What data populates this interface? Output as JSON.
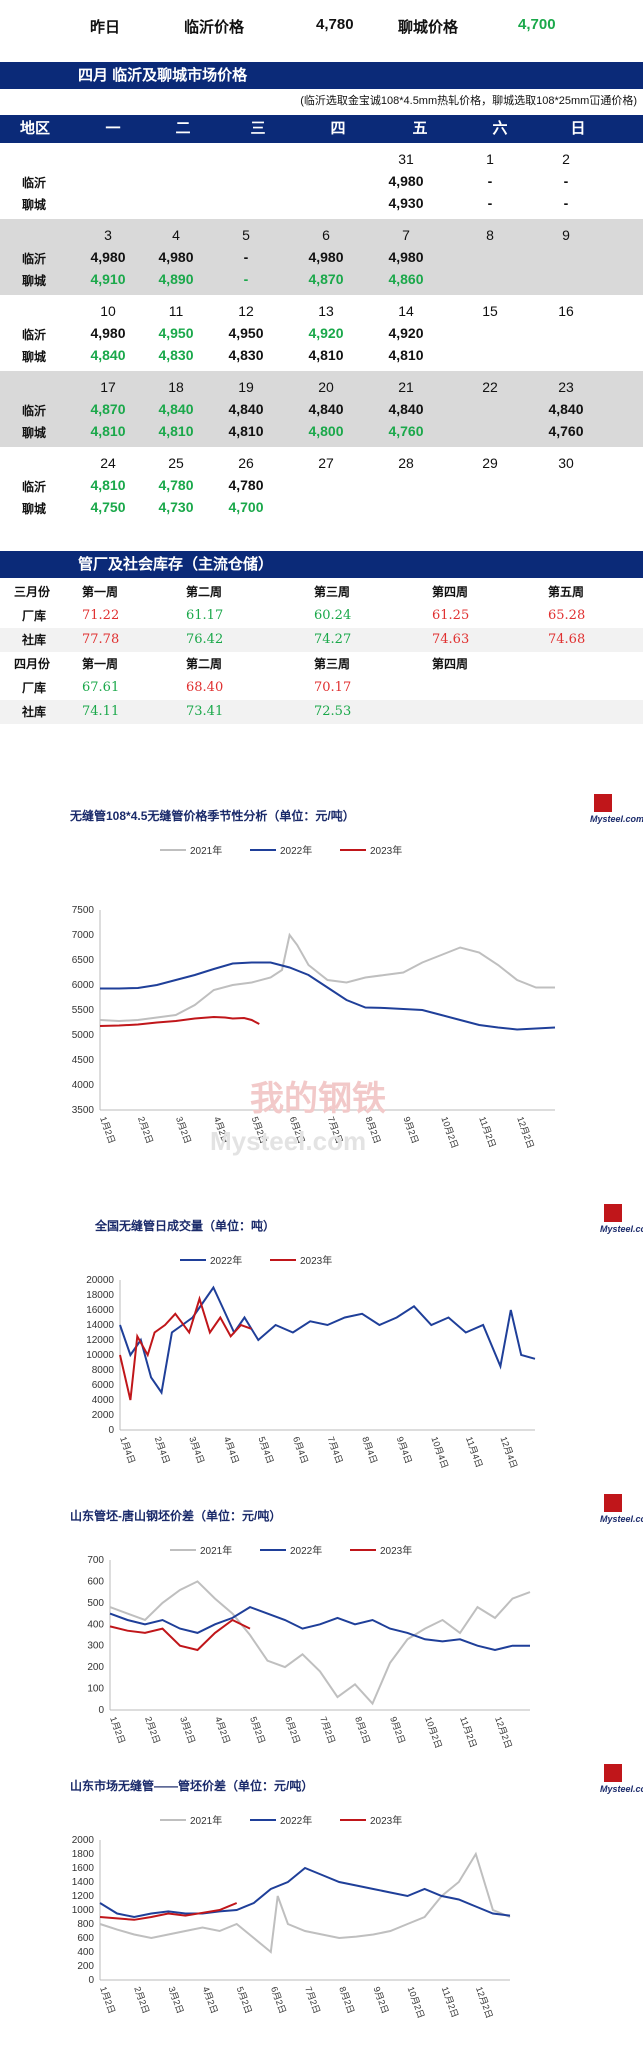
{
  "top": {
    "yesterday": "昨日",
    "linyi_label": "临沂价格",
    "linyi_value": "4,780",
    "liaocheng_label": "聊城价格",
    "liaocheng_value": "4,700"
  },
  "market": {
    "title": "四月  临沂及聊城市场价格",
    "note": "(临沂选取金宝诚108*4.5mm热轧价格，聊城选取108*25mm冚通价格)",
    "headers": [
      "地区",
      "一",
      "二",
      "三",
      "四",
      "五",
      "六",
      "日"
    ],
    "row_labels": {
      "linyi": "临沂",
      "liaocheng": "聊城"
    },
    "weeks": [
      {
        "dates": [
          "",
          "",
          "",
          "",
          "31",
          "1",
          "2"
        ],
        "linyi": [
          "",
          "",
          "",
          "",
          "4,980",
          "-",
          "-"
        ],
        "liaocheng": [
          "",
          "",
          "",
          "",
          "4,930",
          "-",
          "-"
        ]
      },
      {
        "dates": [
          "3",
          "4",
          "5",
          "6",
          "7",
          "8",
          "9"
        ],
        "linyi": [
          "4,980",
          "4,980",
          "-",
          "4,980",
          "4,980",
          "",
          ""
        ],
        "liaocheng": [
          "4,910",
          "4,890",
          "-",
          "4,870",
          "4,860",
          "",
          ""
        ]
      },
      {
        "dates": [
          "10",
          "11",
          "12",
          "13",
          "14",
          "15",
          "16"
        ],
        "linyi": [
          "4,980",
          "4,950",
          "4,950",
          "4,920",
          "4,920",
          "",
          ""
        ],
        "liaocheng": [
          "4,840",
          "4,830",
          "4,830",
          "4,810",
          "4,810",
          "",
          ""
        ]
      },
      {
        "dates": [
          "17",
          "18",
          "19",
          "20",
          "21",
          "22",
          "23"
        ],
        "linyi": [
          "4,870",
          "4,840",
          "4,840",
          "4,840",
          "4,840",
          "",
          "4,840"
        ],
        "liaocheng": [
          "4,810",
          "4,810",
          "4,810",
          "4,800",
          "4,760",
          "",
          "4,760"
        ]
      },
      {
        "dates": [
          "24",
          "25",
          "26",
          "27",
          "28",
          "29",
          "30"
        ],
        "linyi": [
          "4,810",
          "4,780",
          "4,780",
          "",
          "",
          "",
          ""
        ],
        "liaocheng": [
          "4,750",
          "4,730",
          "4,700",
          "",
          "",
          "",
          ""
        ]
      }
    ]
  },
  "inventory": {
    "title": "管厂及社会库存（主流仓储）",
    "march": {
      "label": "三月份",
      "weeks": [
        "第一周",
        "第二周",
        "第三周",
        "第四周",
        "第五周"
      ],
      "factory": {
        "label": "厂库",
        "values": [
          "71.22",
          "61.17",
          "60.24",
          "61.25",
          "65.28"
        ]
      },
      "social": {
        "label": "社库",
        "values": [
          "77.78",
          "76.42",
          "74.27",
          "74.63",
          "74.68"
        ]
      }
    },
    "april": {
      "label": "四月份",
      "weeks": [
        "第一周",
        "第二周",
        "第三周",
        "第四周"
      ],
      "factory": {
        "label": "厂库",
        "values": [
          "67.61",
          "68.40",
          "70.17",
          ""
        ]
      },
      "social": {
        "label": "社库",
        "values": [
          "74.11",
          "73.41",
          "72.53",
          ""
        ]
      }
    }
  },
  "colors": {
    "navy": "#0b2a78",
    "y2021": "#bfbfbf",
    "y2022": "#1f3f99",
    "y2023": "#c0161a",
    "up": "#1aa84a",
    "down": "#e03030"
  },
  "logo_text": "Mysteel.com",
  "watermark_text": "我的钢铁",
  "chart_data": [
    {
      "type": "line",
      "title": "无缝管108*4.5无缝管价格季节性分析（单位：元/吨）",
      "ylim": [
        3500,
        7500
      ],
      "yticks": [
        3500,
        4000,
        4500,
        5000,
        5500,
        6000,
        6500,
        7000,
        7500
      ],
      "xticks": [
        "1月2日",
        "2月2日",
        "3月2日",
        "4月2日",
        "5月2日",
        "6月2日",
        "7月2日",
        "8月2日",
        "9月2日",
        "10月2日",
        "11月2日",
        "12月2日"
      ],
      "series": [
        {
          "name": "2021年",
          "x": [
            0,
            0.5,
            1,
            1.5,
            2,
            2.5,
            3,
            3.5,
            4,
            4.5,
            4.8,
            5,
            5.2,
            5.5,
            6,
            6.5,
            7,
            7.5,
            8,
            8.5,
            9,
            9.5,
            10,
            10.5,
            11,
            11.5,
            12
          ],
          "y": [
            5300,
            5280,
            5300,
            5350,
            5400,
            5600,
            5900,
            6000,
            6050,
            6150,
            6300,
            7000,
            6800,
            6400,
            6100,
            6050,
            6150,
            6200,
            6250,
            6450,
            6600,
            6750,
            6650,
            6400,
            6100,
            5950,
            5950
          ]
        },
        {
          "name": "2022年",
          "x": [
            0,
            0.5,
            1,
            1.5,
            2,
            2.5,
            3,
            3.5,
            4,
            4.5,
            5,
            5.5,
            6,
            6.5,
            7,
            7.5,
            8,
            8.5,
            9,
            9.5,
            10,
            10.5,
            11,
            11.5,
            12
          ],
          "y": [
            5930,
            5930,
            5940,
            6000,
            6100,
            6200,
            6320,
            6430,
            6450,
            6450,
            6350,
            6200,
            5950,
            5700,
            5550,
            5540,
            5520,
            5500,
            5400,
            5300,
            5200,
            5150,
            5110,
            5130,
            5150
          ]
        },
        {
          "name": "2023年",
          "x": [
            0,
            0.5,
            1,
            1.5,
            2,
            2.5,
            3,
            3.3,
            3.5,
            3.8,
            4,
            4.2
          ],
          "y": [
            5180,
            5190,
            5210,
            5250,
            5280,
            5330,
            5360,
            5350,
            5330,
            5340,
            5300,
            5220
          ]
        }
      ]
    },
    {
      "type": "line",
      "title": "全国无缝管日成交量（单位：吨）",
      "ylim": [
        0,
        20000
      ],
      "yticks": [
        0,
        2000,
        4000,
        6000,
        8000,
        10000,
        12000,
        14000,
        16000,
        18000,
        20000
      ],
      "xticks": [
        "1月4日",
        "2月4日",
        "3月4日",
        "4月4日",
        "5月4日",
        "6月4日",
        "7月4日",
        "8月4日",
        "9月4日",
        "10月4日",
        "11月4日",
        "12月4日"
      ],
      "series": [
        {
          "name": "2022年",
          "x": [
            0,
            0.3,
            0.6,
            0.9,
            1.2,
            1.5,
            1.8,
            2.1,
            2.4,
            2.7,
            3,
            3.3,
            3.6,
            4,
            4.5,
            5,
            5.5,
            6,
            6.5,
            7,
            7.5,
            8,
            8.5,
            9,
            9.5,
            10,
            10.5,
            11,
            11.3,
            11.6,
            12
          ],
          "y": [
            14000,
            10000,
            12000,
            7000,
            5000,
            13000,
            14000,
            15000,
            17000,
            19000,
            16000,
            13000,
            15000,
            12000,
            14000,
            13000,
            14500,
            14000,
            15000,
            15500,
            14000,
            15000,
            16500,
            14000,
            15000,
            13000,
            14000,
            8500,
            16000,
            10000,
            9500
          ]
        },
        {
          "name": "2023年",
          "x": [
            0,
            0.3,
            0.5,
            0.8,
            1,
            1.3,
            1.6,
            2,
            2.3,
            2.6,
            2.9,
            3.2,
            3.5,
            3.8
          ],
          "y": [
            10000,
            4000,
            12500,
            10000,
            13000,
            14000,
            15500,
            13000,
            17500,
            13000,
            15000,
            12500,
            14000,
            13500
          ]
        }
      ]
    },
    {
      "type": "line",
      "title": "山东管坯-唐山钢坯价差（单位：元/吨）",
      "ylim": [
        0,
        700
      ],
      "yticks": [
        0,
        100,
        200,
        300,
        400,
        500,
        600,
        700
      ],
      "xticks": [
        "1月2日",
        "2月2日",
        "3月2日",
        "4月2日",
        "5月2日",
        "6月2日",
        "7月2日",
        "8月2日",
        "9月2日",
        "10月2日",
        "11月2日",
        "12月2日"
      ],
      "series": [
        {
          "name": "2021年",
          "x": [
            0,
            0.5,
            1,
            1.5,
            2,
            2.5,
            3,
            3.5,
            4,
            4.5,
            5,
            5.5,
            6,
            6.5,
            7,
            7.5,
            8,
            8.5,
            9,
            9.5,
            10,
            10.5,
            11,
            11.5,
            12
          ],
          "y": [
            480,
            450,
            420,
            500,
            560,
            600,
            520,
            450,
            350,
            230,
            200,
            260,
            180,
            60,
            120,
            30,
            220,
            330,
            380,
            420,
            360,
            480,
            430,
            520,
            550
          ]
        },
        {
          "name": "2022年",
          "x": [
            0,
            0.5,
            1,
            1.5,
            2,
            2.5,
            3,
            3.5,
            4,
            4.5,
            5,
            5.5,
            6,
            6.5,
            7,
            7.5,
            8,
            8.5,
            9,
            9.5,
            10,
            10.5,
            11,
            11.5,
            12
          ],
          "y": [
            450,
            420,
            400,
            420,
            380,
            360,
            400,
            430,
            480,
            450,
            420,
            380,
            400,
            430,
            400,
            420,
            380,
            360,
            330,
            320,
            330,
            300,
            280,
            300,
            300
          ]
        },
        {
          "name": "2023年",
          "x": [
            0,
            0.5,
            1,
            1.5,
            2,
            2.5,
            3,
            3.5,
            4
          ],
          "y": [
            390,
            370,
            360,
            380,
            300,
            280,
            360,
            420,
            380
          ]
        }
      ]
    },
    {
      "type": "line",
      "title": "山东市场无缝管——管坯价差（单位：元/吨）",
      "ylim": [
        0,
        2000
      ],
      "yticks": [
        0,
        200,
        400,
        600,
        800,
        1000,
        1200,
        1400,
        1600,
        1800,
        2000
      ],
      "xticks": [
        "1月2日",
        "2月2日",
        "3月2日",
        "4月2日",
        "5月2日",
        "6月2日",
        "7月2日",
        "8月2日",
        "9月2日",
        "10月2日",
        "11月2日",
        "12月2日"
      ],
      "series": [
        {
          "name": "2021年",
          "x": [
            0,
            0.5,
            1,
            1.5,
            2,
            2.5,
            3,
            3.5,
            4,
            4.5,
            5,
            5.2,
            5.5,
            6,
            6.5,
            7,
            7.5,
            8,
            8.5,
            9,
            9.5,
            10,
            10.5,
            11,
            11.5,
            12
          ],
          "y": [
            800,
            720,
            650,
            600,
            650,
            700,
            750,
            700,
            800,
            600,
            400,
            1200,
            800,
            700,
            650,
            600,
            620,
            650,
            700,
            800,
            900,
            1200,
            1400,
            1800,
            1000,
            900
          ]
        },
        {
          "name": "2022年",
          "x": [
            0,
            0.5,
            1,
            1.5,
            2,
            2.5,
            3,
            3.5,
            4,
            4.5,
            5,
            5.5,
            6,
            6.5,
            7,
            7.5,
            8,
            8.5,
            9,
            9.5,
            10,
            10.5,
            11,
            11.5,
            12
          ],
          "y": [
            1100,
            950,
            900,
            950,
            980,
            950,
            950,
            980,
            1000,
            1100,
            1300,
            1400,
            1600,
            1500,
            1400,
            1350,
            1300,
            1250,
            1200,
            1300,
            1200,
            1150,
            1050,
            950,
            920
          ]
        },
        {
          "name": "2023年",
          "x": [
            0,
            0.5,
            1,
            1.5,
            2,
            2.5,
            3,
            3.5,
            4
          ],
          "y": [
            900,
            880,
            860,
            900,
            950,
            920,
            960,
            1000,
            1100
          ]
        }
      ]
    }
  ]
}
